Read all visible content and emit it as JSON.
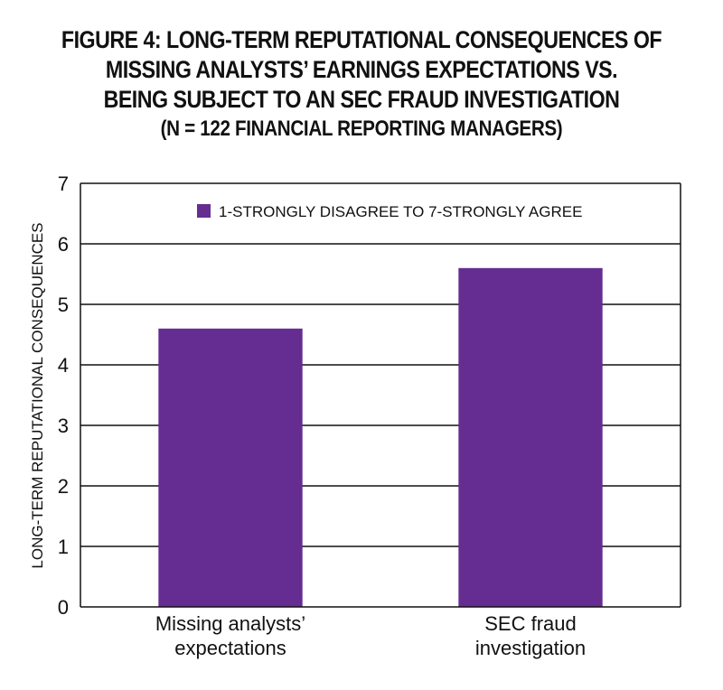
{
  "title_lines": [
    "FIGURE 4: LONG-TERM REPUTATIONAL CONSEQUENCES OF",
    "MISSING ANALYSTS’ EARNINGS EXPECTATIONS VS.",
    "BEING SUBJECT TO AN SEC FRAUD INVESTIGATION"
  ],
  "subtitle": "(N = 122 FINANCIAL REPORTING MANAGERS)",
  "chart_data": {
    "type": "bar",
    "categories": [
      [
        "Missing analysts’",
        "expectations"
      ],
      [
        "SEC fraud",
        "investigation"
      ]
    ],
    "series": [
      {
        "name": "1-STRONGLY DISAGREE TO 7-STRONGLY AGREE",
        "values": [
          4.6,
          5.6
        ]
      }
    ],
    "ylabel": "LONG-TERM REPUTATIONAL CONSEQUENCES",
    "xlabel": "",
    "ylim": [
      0,
      7
    ],
    "yticks": [
      0,
      1,
      2,
      3,
      4,
      5,
      6,
      7
    ],
    "grid": true,
    "legend_position": "top-center",
    "colors": {
      "bar": "#652d91",
      "grid": "#111111"
    }
  }
}
